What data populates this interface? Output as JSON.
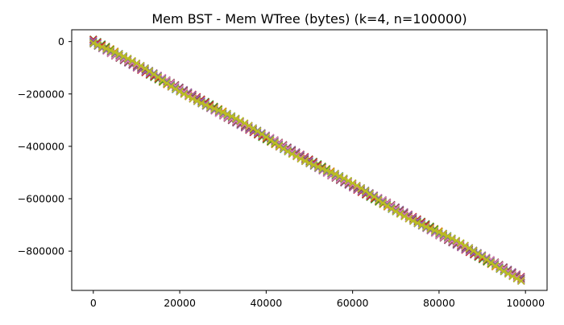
{
  "chart_data": {
    "type": "line",
    "title": "Mem BST - Mem WTree (bytes) (k=4, n=100000)",
    "xlabel": "",
    "ylabel": "",
    "xlim": [
      -5000,
      105000
    ],
    "ylim": [
      -950000,
      45000
    ],
    "x_ticks": [
      0,
      20000,
      40000,
      60000,
      80000,
      100000
    ],
    "x_tick_labels": [
      "0",
      "20000",
      "40000",
      "60000",
      "80000",
      "100000"
    ],
    "y_ticks": [
      0,
      -200000,
      -400000,
      -600000,
      -800000
    ],
    "y_tick_labels": [
      "0",
      "−200000",
      "−400000",
      "−600000",
      "−800000"
    ],
    "grid": false,
    "legend": "none",
    "marker": "x",
    "series": [
      {
        "color": "#1f77b4",
        "x_start": 0,
        "x_end": 99000,
        "x_step": 1000,
        "y_start": 0,
        "slope": -9.15,
        "amplitude": 9000,
        "phase": 0.0
      },
      {
        "color": "#ff7f0e",
        "x_start": 0,
        "x_end": 99000,
        "x_step": 1000,
        "y_start": 0,
        "slope": -9.15,
        "amplitude": 9000,
        "phase": 0.7
      },
      {
        "color": "#2ca02c",
        "x_start": 0,
        "x_end": 99000,
        "x_step": 1000,
        "y_start": 0,
        "slope": -9.15,
        "amplitude": 9000,
        "phase": 1.4
      },
      {
        "color": "#d62728",
        "x_start": 0,
        "x_end": 99000,
        "x_step": 1000,
        "y_start": 0,
        "slope": -9.15,
        "amplitude": 9000,
        "phase": 2.1
      },
      {
        "color": "#9467bd",
        "x_start": 0,
        "x_end": 99000,
        "x_step": 1000,
        "y_start": 0,
        "slope": -9.15,
        "amplitude": 9000,
        "phase": 2.8
      },
      {
        "color": "#8c564b",
        "x_start": 0,
        "x_end": 99000,
        "x_step": 1000,
        "y_start": 0,
        "slope": -9.15,
        "amplitude": 9000,
        "phase": 3.5
      },
      {
        "color": "#e377c2",
        "x_start": 0,
        "x_end": 99000,
        "x_step": 1000,
        "y_start": 0,
        "slope": -9.15,
        "amplitude": 9000,
        "phase": 4.2
      },
      {
        "color": "#7f7f7f",
        "x_start": 0,
        "x_end": 99000,
        "x_step": 1000,
        "y_start": 0,
        "slope": -9.15,
        "amplitude": 9000,
        "phase": 4.9
      },
      {
        "color": "#bcbd22",
        "x_start": 0,
        "x_end": 99000,
        "x_step": 1000,
        "y_start": 0,
        "slope": -9.15,
        "amplitude": 9000,
        "phase": 5.6
      }
    ]
  }
}
